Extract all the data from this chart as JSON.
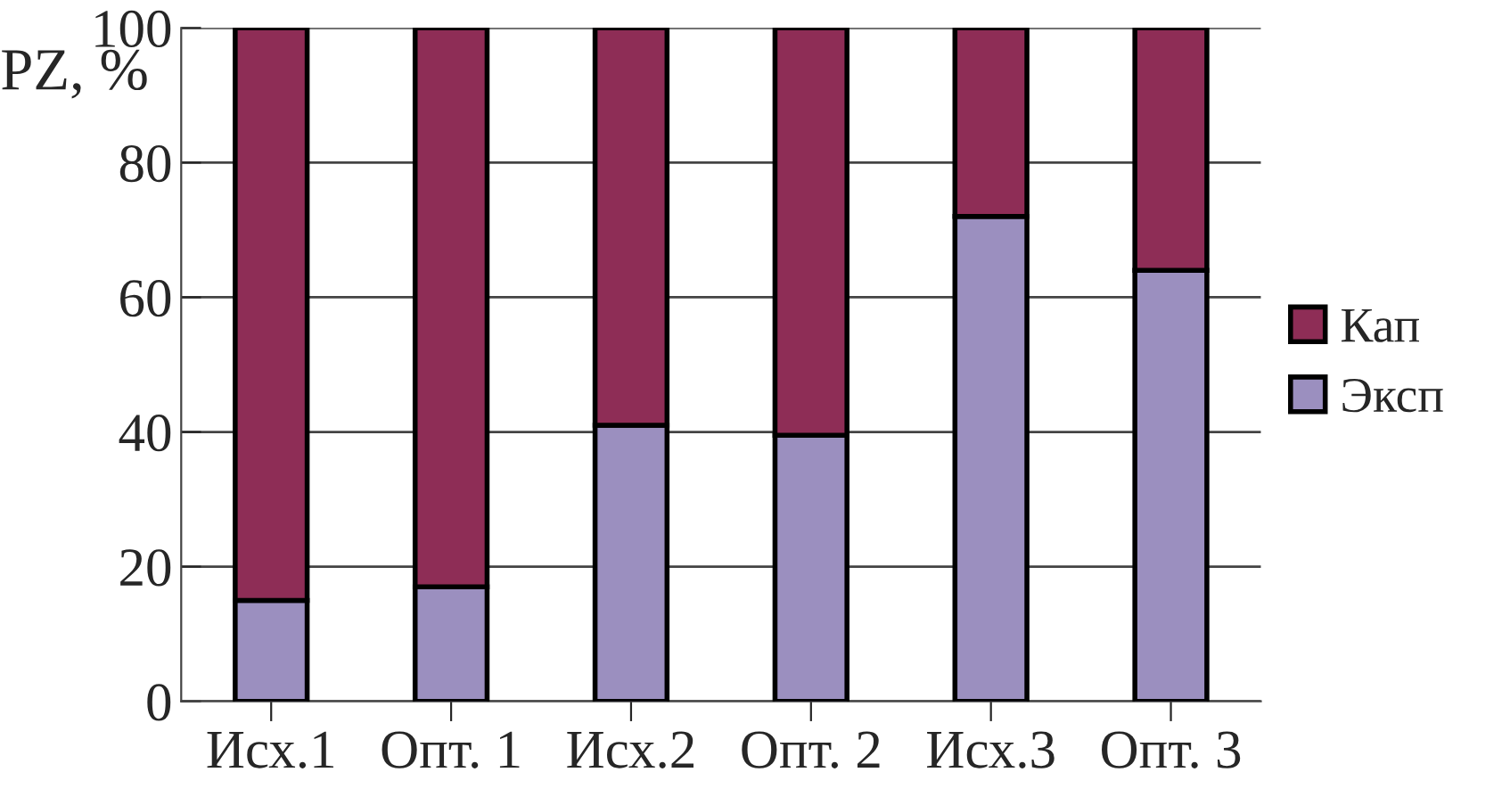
{
  "chart_data": {
    "type": "bar",
    "stacked": true,
    "ylabel": "PZ, %",
    "categories": [
      "Исх.1",
      "Опт. 1",
      "Исх.2",
      "Опт. 2",
      "Исх.3",
      "Опт. 3"
    ],
    "series": [
      {
        "name": "Эксп",
        "color": "#9b8fbf",
        "values": [
          15,
          17,
          41,
          39.5,
          72,
          64
        ]
      },
      {
        "name": "Кап",
        "color": "#8e2d56",
        "values": [
          85,
          83,
          59,
          60.5,
          28,
          36
        ]
      }
    ],
    "ylim": [
      0,
      100
    ],
    "yticks": [
      0,
      20,
      40,
      60,
      80,
      100
    ],
    "grid": "y",
    "legend": "right"
  }
}
